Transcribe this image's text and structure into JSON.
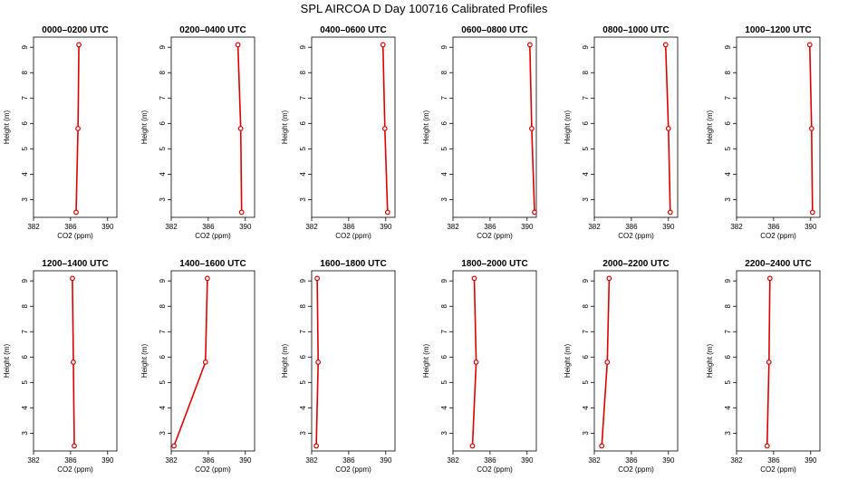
{
  "title": "SPL AIRCOA D  Day 100716  Calibrated Profiles",
  "colors": {
    "series": "#dd0000",
    "axis": "#000000"
  },
  "chart_data": {
    "type": "line",
    "layout": "2x6 grid of vertical profile panels",
    "xlabel": "CO2 (ppm)",
    "ylabel": "Height (m)",
    "xlim": [
      382,
      391
    ],
    "ylim": [
      2.3,
      9.4
    ],
    "xticks": [
      382,
      386,
      390
    ],
    "yticks": [
      3,
      4,
      5,
      6,
      7,
      8,
      9
    ],
    "grid": false,
    "heights": [
      2.5,
      5.8,
      9.1
    ],
    "panels": [
      {
        "title": "0000–0200 UTC",
        "co2": [
          386.6,
          386.8,
          386.9
        ]
      },
      {
        "title": "0200–0400 UTC",
        "co2": [
          389.6,
          389.5,
          389.2
        ]
      },
      {
        "title": "0400–0600 UTC",
        "co2": [
          390.2,
          389.9,
          389.7
        ]
      },
      {
        "title": "0600–0800 UTC",
        "co2": [
          390.8,
          390.5,
          390.3
        ]
      },
      {
        "title": "0800–1000 UTC",
        "co2": [
          390.2,
          390.0,
          389.7
        ]
      },
      {
        "title": "1000–1200 UTC",
        "co2": [
          390.2,
          390.1,
          389.9
        ]
      },
      {
        "title": "1200–1400 UTC",
        "co2": [
          386.4,
          386.3,
          386.2
        ]
      },
      {
        "title": "1400–1600 UTC",
        "co2": [
          382.3,
          385.7,
          385.9
        ]
      },
      {
        "title": "1600–1800 UTC",
        "co2": [
          382.5,
          382.7,
          382.6
        ]
      },
      {
        "title": "1800–2000 UTC",
        "co2": [
          384.1,
          384.5,
          384.3
        ]
      },
      {
        "title": "2000–2200 UTC",
        "co2": [
          382.8,
          383.4,
          383.6
        ]
      },
      {
        "title": "2200–2400 UTC",
        "co2": [
          385.3,
          385.5,
          385.6
        ]
      }
    ]
  }
}
